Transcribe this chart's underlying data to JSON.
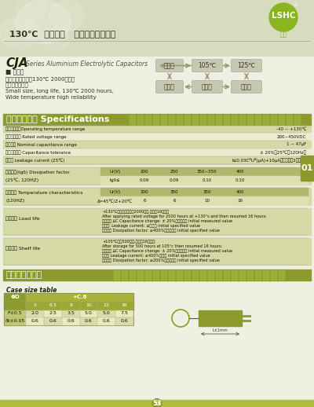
{
  "bg_color": "#eef0e2",
  "header_bg": "#d8dcbe",
  "olive_green": "#8b9a2a",
  "light_olive_row": "#c8cc8a",
  "white": "#ffffff",
  "title_text": "130℃  节能灯用   小型铝电解电容器",
  "lshc_color": "#8ab520",
  "page_num": "53",
  "side_num": "01",
  "spec_rows": [
    [
      "使用温度范围Operating temperature range",
      "-40 ~ +130℃"
    ],
    [
      "额定电压范围 Rated voltage range",
      "200~450VDC"
    ],
    [
      "容量范围 Nominal capacitance range",
      "1 ~ 47μF"
    ],
    [
      "容量允许偏差 Capacitance tolerance",
      "± 20%（25℃，120Hz）"
    ],
    [
      "漏电流 Leakage current (25℃)",
      "I≤0.03CᴺUᴺ(μA)+10μA（取大者，2分钟后）"
    ]
  ],
  "diss_headers": [
    "Ur(V)",
    "200",
    "250",
    "350~350",
    "400"
  ],
  "diss_vals": [
    "tgδ≤",
    "0.09",
    "0.09",
    "0.10",
    "0.10"
  ],
  "temp_headers": [
    "Ur(V)",
    "200",
    "350",
    "350",
    "400"
  ],
  "temp_vals": [
    "Δ=45℃/Z+20℃",
    "6",
    "6",
    "10",
    "16"
  ],
  "load_lines": [
    "+130℃将额定电压施加2000小时,回復至16小时后",
    "After applying rated voltage for 2000 hours at +130°s and then resumed 16 hours;",
    "电容变化 ∆C Capacitance change: ± 20%初期测量值 initial measured value",
    "漏电流: Leakage current: ≤规定值 initial specified value",
    "损耗因数 Dissipation factor: ≤400%规定设定值 initial specified value"
  ],
  "shelf_lines": [
    "+105℃存放500小时,回復至16小时后:",
    "After storage for 500 hours at 105°c then resumed 16 hours;",
    "电容变化 ∆C Capacitance change: ± 20%初期测量值 initial measured value",
    "漏电流 Leakage current: ≤400%规定值 initial specified value",
    "损耗因数 Dissipation factor: ≤200%规定设定值 initial specified value"
  ],
  "case_sizes": [
    "5",
    "6.3",
    "8",
    "10",
    "13",
    "16"
  ],
  "case_f": [
    "2.0",
    "2.5",
    "3.5",
    "5.0",
    "5.0",
    "7.5"
  ],
  "case_d": [
    "0.6",
    "0.6",
    "0.6",
    "0.6",
    "0.6",
    "0.6"
  ]
}
